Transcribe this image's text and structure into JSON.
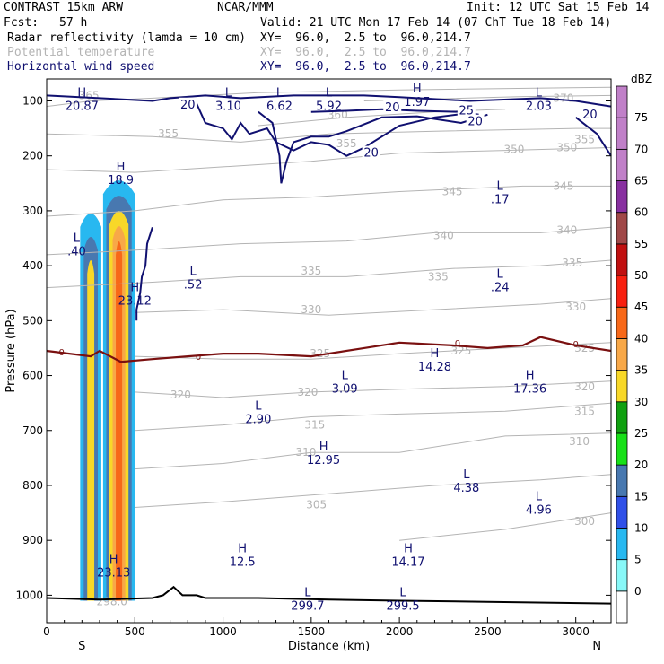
{
  "header": {
    "model": "CONTRAST 15km ARW",
    "org": "NCAR/MMM",
    "init": "Init: 12 UTC Sat 15 Feb 14",
    "fcst_label": "Fcst:",
    "fcst_value": "57 h",
    "valid": "Valid: 21 UTC Mon 17 Feb 14 (07 ChT Tue 18 Feb 14)",
    "field1_name": "Radar reflectivity (lamda = 10 cm)",
    "field1_xy": "XY=  96.0,  2.5 to  96.0,214.7",
    "field2_name": "Potential temperature",
    "field2_xy": "XY=  96.0,  2.5 to  96.0,214.7",
    "field3_name": "Horizontal wind speed",
    "field3_xy": "XY=  96.0,  2.5 to  96.0,214.7"
  },
  "colors": {
    "theta": "#b4b4b4",
    "wind": "#101070",
    "freezing": "#7a1010",
    "terrain": "#000000",
    "dbz": [
      "#ffffff",
      "#88f8f8",
      "#28b8f0",
      "#3050e8",
      "#4878b0",
      "#18e018",
      "#10a010",
      "#f8d828",
      "#f8a848",
      "#f86818",
      "#f82010",
      "#c01010",
      "#a04848",
      "#8830a0",
      "#c080c8"
    ]
  },
  "chart_data": {
    "type": "cross-section",
    "xlabel": "Distance (km)",
    "ylabel": "Pressure (hPa)",
    "xlim": [
      0,
      3200
    ],
    "ylim": [
      1050,
      60
    ],
    "xticks": [
      0,
      500,
      1000,
      1500,
      2000,
      2500,
      3000
    ],
    "yticks": [
      100,
      200,
      300,
      400,
      500,
      600,
      700,
      800,
      900,
      1000
    ],
    "x_end_labels": {
      "left": "S",
      "right": "N"
    },
    "colorbar": {
      "title": "dBZ",
      "levels": [
        0,
        5,
        10,
        15,
        20,
        25,
        30,
        35,
        40,
        45,
        50,
        55,
        60,
        65,
        70,
        75
      ]
    },
    "theta_contours": [
      {
        "label": "365",
        "pts": [
          [
            0,
            110
          ],
          [
            250,
            100
          ],
          [
            600,
            95
          ],
          [
            1200,
            85
          ],
          [
            2000,
            80
          ],
          [
            3200,
            75
          ]
        ]
      },
      {
        "label": "370",
        "pts": [
          [
            1800,
            100
          ],
          [
            2700,
            92
          ],
          [
            3200,
            90
          ]
        ]
      },
      {
        "label": "360",
        "pts": [
          [
            1200,
            145
          ],
          [
            1700,
            130
          ],
          [
            2200,
            120
          ],
          [
            2600,
            115
          ]
        ]
      },
      {
        "label": "355",
        "pts": [
          [
            0,
            160
          ],
          [
            600,
            165
          ],
          [
            1100,
            175
          ],
          [
            1600,
            160
          ],
          [
            2200,
            155
          ],
          [
            3000,
            150
          ],
          [
            3200,
            150
          ]
        ]
      },
      {
        "label": "350",
        "pts": [
          [
            0,
            225
          ],
          [
            500,
            230
          ],
          [
            1000,
            220
          ],
          [
            1500,
            210
          ],
          [
            2000,
            195
          ],
          [
            2600,
            190
          ],
          [
            3200,
            185
          ]
        ]
      },
      {
        "label": "345",
        "pts": [
          [
            0,
            310
          ],
          [
            500,
            300
          ],
          [
            1000,
            280
          ],
          [
            1500,
            275
          ],
          [
            2000,
            265
          ],
          [
            2700,
            255
          ],
          [
            3200,
            255
          ]
        ]
      },
      {
        "label": "340",
        "pts": [
          [
            0,
            380
          ],
          [
            600,
            370
          ],
          [
            1100,
            360
          ],
          [
            1700,
            355
          ],
          [
            2200,
            340
          ],
          [
            2800,
            340
          ],
          [
            3200,
            330
          ]
        ]
      },
      {
        "label": "335",
        "pts": [
          [
            0,
            440
          ],
          [
            600,
            430
          ],
          [
            1100,
            420
          ],
          [
            1700,
            420
          ],
          [
            2300,
            405
          ],
          [
            2800,
            400
          ],
          [
            3200,
            390
          ]
        ]
      },
      {
        "label": "330",
        "pts": [
          [
            500,
            485
          ],
          [
            1000,
            480
          ],
          [
            1600,
            490
          ],
          [
            2200,
            480
          ],
          [
            2800,
            470
          ],
          [
            3200,
            460
          ]
        ]
      },
      {
        "label": "325",
        "pts": [
          [
            500,
            565
          ],
          [
            1000,
            570
          ],
          [
            1500,
            570
          ],
          [
            2000,
            560
          ],
          [
            2600,
            550
          ],
          [
            3200,
            540
          ]
        ]
      },
      {
        "label": "320",
        "pts": [
          [
            500,
            630
          ],
          [
            1000,
            640
          ],
          [
            1500,
            630
          ],
          [
            2000,
            625
          ],
          [
            2600,
            620
          ],
          [
            3200,
            610
          ]
        ]
      },
      {
        "label": "315",
        "pts": [
          [
            500,
            700
          ],
          [
            1000,
            690
          ],
          [
            1500,
            675
          ],
          [
            2000,
            670
          ],
          [
            2600,
            665
          ],
          [
            3200,
            650
          ]
        ]
      },
      {
        "label": "310",
        "pts": [
          [
            500,
            770
          ],
          [
            1000,
            760
          ],
          [
            1500,
            740
          ],
          [
            2000,
            740
          ],
          [
            2600,
            710
          ],
          [
            3200,
            705
          ]
        ]
      },
      {
        "label": "305",
        "pts": [
          [
            500,
            840
          ],
          [
            1000,
            830
          ],
          [
            1600,
            815
          ],
          [
            2200,
            800
          ],
          [
            2800,
            790
          ],
          [
            3200,
            780
          ]
        ]
      },
      {
        "label": "300",
        "pts": [
          [
            2000,
            900
          ],
          [
            2600,
            880
          ],
          [
            3000,
            860
          ],
          [
            3200,
            850
          ]
        ]
      }
    ],
    "theta_labels": [
      {
        "x": 240,
        "p": 90,
        "text": "365"
      },
      {
        "x": 2930,
        "p": 95,
        "text": "370"
      },
      {
        "x": 1650,
        "p": 125,
        "text": "360"
      },
      {
        "x": 690,
        "p": 160,
        "text": "355"
      },
      {
        "x": 3050,
        "p": 170,
        "text": "355"
      },
      {
        "x": 1700,
        "p": 178,
        "text": "355"
      },
      {
        "x": 2650,
        "p": 188,
        "text": "350"
      },
      {
        "x": 2950,
        "p": 185,
        "text": "350"
      },
      {
        "x": 2930,
        "p": 255,
        "text": "345"
      },
      {
        "x": 2300,
        "p": 265,
        "text": "345"
      },
      {
        "x": 2950,
        "p": 335,
        "text": "340"
      },
      {
        "x": 2250,
        "p": 345,
        "text": "340"
      },
      {
        "x": 1500,
        "p": 410,
        "text": "335"
      },
      {
        "x": 2220,
        "p": 420,
        "text": "335"
      },
      {
        "x": 2980,
        "p": 395,
        "text": "335"
      },
      {
        "x": 1500,
        "p": 480,
        "text": "330"
      },
      {
        "x": 3000,
        "p": 475,
        "text": "330"
      },
      {
        "x": 1550,
        "p": 560,
        "text": "325"
      },
      {
        "x": 2350,
        "p": 555,
        "text": "325"
      },
      {
        "x": 3050,
        "p": 550,
        "text": "325"
      },
      {
        "x": 760,
        "p": 635,
        "text": "320"
      },
      {
        "x": 1480,
        "p": 630,
        "text": "320"
      },
      {
        "x": 3050,
        "p": 620,
        "text": "320"
      },
      {
        "x": 1520,
        "p": 690,
        "text": "315"
      },
      {
        "x": 3050,
        "p": 665,
        "text": "315"
      },
      {
        "x": 1470,
        "p": 740,
        "text": "310"
      },
      {
        "x": 3020,
        "p": 720,
        "text": "310"
      },
      {
        "x": 1530,
        "p": 835,
        "text": "305"
      },
      {
        "x": 3050,
        "p": 865,
        "text": "300"
      },
      {
        "x": 370,
        "p": 1012,
        "text": "298.0"
      }
    ],
    "wind_contours": [
      {
        "label": "20",
        "pts": [
          [
            0,
            90
          ],
          [
            300,
            95
          ],
          [
            600,
            100
          ],
          [
            700,
            95
          ],
          [
            900,
            90
          ],
          [
            1100,
            95
          ],
          [
            1400,
            90
          ],
          [
            1800,
            90
          ],
          [
            2000,
            93
          ],
          [
            2400,
            100
          ],
          [
            2800,
            95
          ],
          [
            3000,
            100
          ],
          [
            3200,
            110
          ]
        ]
      },
      {
        "label": "20",
        "pts": [
          [
            850,
            105
          ],
          [
            900,
            140
          ],
          [
            1000,
            150
          ],
          [
            1050,
            170
          ],
          [
            1100,
            140
          ],
          [
            1150,
            160
          ],
          [
            1250,
            150
          ],
          [
            1300,
            175
          ],
          [
            1400,
            190
          ],
          [
            1500,
            175
          ],
          [
            1600,
            180
          ],
          [
            1700,
            200
          ],
          [
            1800,
            185
          ],
          [
            2000,
            145
          ],
          [
            2200,
            130
          ],
          [
            2400,
            122
          ]
        ]
      },
      {
        "label": "20",
        "pts": [
          [
            1200,
            120
          ],
          [
            1280,
            140
          ],
          [
            1320,
            200
          ],
          [
            1330,
            250
          ],
          [
            1360,
            210
          ],
          [
            1400,
            175
          ],
          [
            1500,
            165
          ],
          [
            1600,
            165
          ],
          [
            1700,
            155
          ],
          [
            1900,
            130
          ],
          [
            2100,
            128
          ],
          [
            2350,
            140
          ],
          [
            2500,
            125
          ]
        ]
      },
      {
        "label": "25",
        "pts": [
          [
            1500,
            120
          ],
          [
            1700,
            118
          ],
          [
            1900,
            115
          ],
          [
            2100,
            118
          ],
          [
            2350,
            120
          ],
          [
            2450,
            125
          ]
        ]
      },
      {
        "label": "20",
        "pts": [
          [
            3000,
            130
          ],
          [
            3120,
            160
          ],
          [
            3200,
            200
          ]
        ]
      },
      {
        "label": "",
        "pts": [
          [
            600,
            330
          ],
          [
            570,
            360
          ],
          [
            560,
            400
          ],
          [
            540,
            420
          ],
          [
            530,
            450
          ],
          [
            510,
            480
          ],
          [
            510,
            500
          ]
        ]
      }
    ],
    "wind_labels": [
      {
        "x": 800,
        "p": 107,
        "text": "20"
      },
      {
        "x": 1960,
        "p": 112,
        "text": "20"
      },
      {
        "x": 2380,
        "p": 118,
        "text": "25"
      },
      {
        "x": 2430,
        "p": 138,
        "text": "20"
      },
      {
        "x": 1840,
        "p": 195,
        "text": "20"
      },
      {
        "x": 3080,
        "p": 125,
        "text": "20"
      }
    ],
    "freezing_line": {
      "label": "0",
      "pts": [
        [
          0,
          555
        ],
        [
          250,
          565
        ],
        [
          300,
          555
        ],
        [
          420,
          575
        ],
        [
          600,
          570
        ],
        [
          800,
          565
        ],
        [
          1000,
          560
        ],
        [
          1200,
          560
        ],
        [
          1500,
          565
        ],
        [
          1800,
          550
        ],
        [
          2000,
          540
        ],
        [
          2300,
          545
        ],
        [
          2500,
          550
        ],
        [
          2700,
          545
        ],
        [
          2800,
          530
        ],
        [
          3000,
          545
        ],
        [
          3200,
          555
        ]
      ]
    },
    "freezing_labels": [
      {
        "x": 85,
        "p": 557,
        "text": "0"
      },
      {
        "x": 860,
        "p": 565,
        "text": "0"
      },
      {
        "x": 2330,
        "p": 540,
        "text": "0"
      },
      {
        "x": 3000,
        "p": 542,
        "text": "0"
      }
    ],
    "terrain": [
      [
        0,
        1005
      ],
      [
        300,
        1008
      ],
      [
        600,
        1005
      ],
      [
        660,
        1000
      ],
      [
        720,
        985
      ],
      [
        770,
        1000
      ],
      [
        850,
        1000
      ],
      [
        900,
        1005
      ],
      [
        1200,
        1005
      ],
      [
        1600,
        1008
      ],
      [
        2000,
        1010
      ],
      [
        2500,
        1012
      ],
      [
        3200,
        1015
      ]
    ],
    "reflectivity_columns": [
      {
        "x": 250,
        "p_top": 300,
        "p_bot": 1010,
        "half_width_km": 60,
        "dbz": [
          5,
          15,
          30
        ]
      },
      {
        "x": 410,
        "p_top": 240,
        "p_bot": 1010,
        "half_width_km": 90,
        "dbz": [
          5,
          15,
          30,
          35,
          40
        ]
      }
    ],
    "extrema": [
      {
        "type": "H",
        "value": "20.87",
        "x": 200,
        "p": 95
      },
      {
        "type": "L",
        "value": "3.10",
        "x": 1030,
        "p": 95
      },
      {
        "type": "L",
        "value": "6.62",
        "x": 1320,
        "p": 95
      },
      {
        "type": "L",
        "value": "5.92",
        "x": 1600,
        "p": 95
      },
      {
        "type": "H",
        "value": "1.97",
        "x": 2100,
        "p": 88
      },
      {
        "type": "L",
        "value": "2.03",
        "x": 2790,
        "p": 95
      },
      {
        "type": "H",
        "value": "18.9",
        "x": 420,
        "p": 230
      },
      {
        "type": "L",
        "value": ".17",
        "x": 2570,
        "p": 265
      },
      {
        "type": "L",
        "value": ".40",
        "x": 170,
        "p": 360
      },
      {
        "type": "L",
        "value": ".52",
        "x": 830,
        "p": 420
      },
      {
        "type": "L",
        "value": ".24",
        "x": 2570,
        "p": 425
      },
      {
        "type": "H",
        "value": "23.12",
        "x": 500,
        "p": 450
      },
      {
        "type": "H",
        "value": "14.28",
        "x": 2200,
        "p": 570
      },
      {
        "type": "L",
        "value": "3.09",
        "x": 1690,
        "p": 610
      },
      {
        "type": "H",
        "value": "17.36",
        "x": 2740,
        "p": 610
      },
      {
        "type": "L",
        "value": "2.90",
        "x": 1200,
        "p": 665
      },
      {
        "type": "H",
        "value": "12.95",
        "x": 1570,
        "p": 740
      },
      {
        "type": "L",
        "value": "4.38",
        "x": 2380,
        "p": 790
      },
      {
        "type": "L",
        "value": "4.96",
        "x": 2790,
        "p": 830
      },
      {
        "type": "H",
        "value": "12.5",
        "x": 1110,
        "p": 925
      },
      {
        "type": "H",
        "value": "14.17",
        "x": 2050,
        "p": 925
      },
      {
        "type": "H",
        "value": "23.13",
        "x": 380,
        "p": 945
      },
      {
        "type": "L",
        "value": "299.7",
        "x": 1480,
        "p": 1005
      },
      {
        "type": "L",
        "value": "299.5",
        "x": 2020,
        "p": 1005
      }
    ]
  }
}
